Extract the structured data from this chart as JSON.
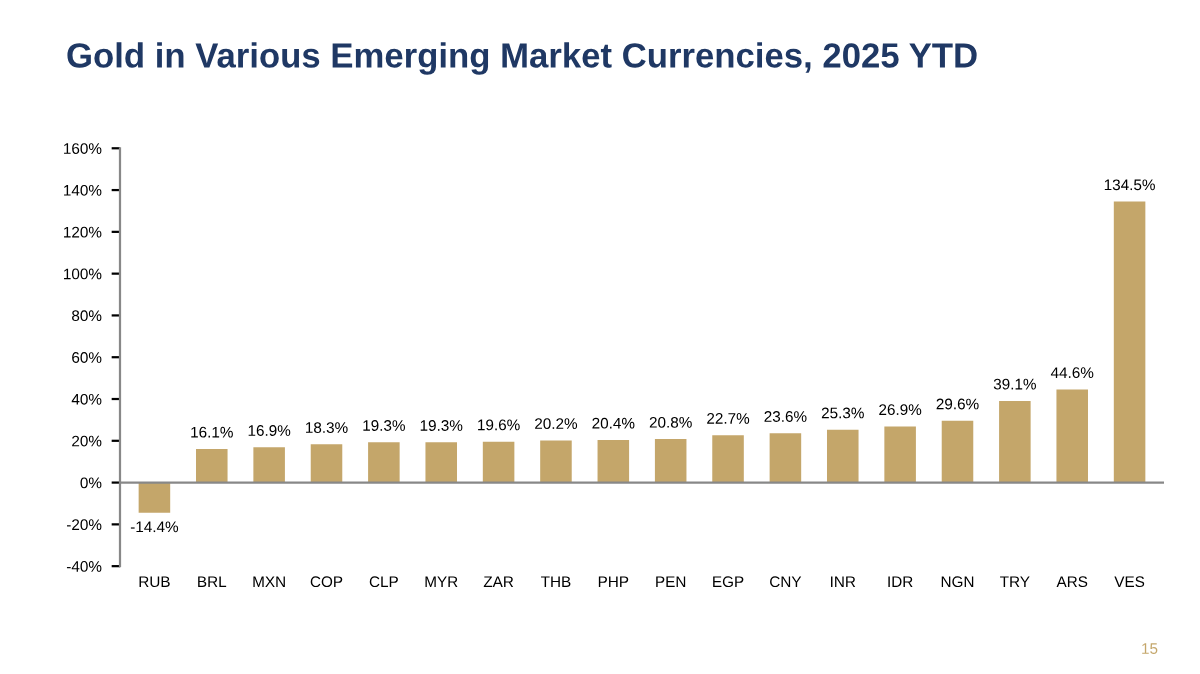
{
  "chart_data": {
    "type": "bar",
    "title": "Gold in Various Emerging Market Currencies, 2025 YTD",
    "categories": [
      "RUB",
      "BRL",
      "MXN",
      "COP",
      "CLP",
      "MYR",
      "ZAR",
      "THB",
      "PHP",
      "PEN",
      "EGP",
      "CNY",
      "INR",
      "IDR",
      "NGN",
      "TRY",
      "ARS",
      "VES"
    ],
    "values": [
      -14.4,
      16.1,
      16.9,
      18.3,
      19.3,
      19.3,
      19.6,
      20.2,
      20.4,
      20.8,
      22.7,
      23.6,
      25.3,
      26.9,
      29.6,
      39.1,
      44.6,
      134.5
    ],
    "value_labels": [
      "-14.4%",
      "16.1%",
      "16.9%",
      "18.3%",
      "19.3%",
      "19.3%",
      "19.6%",
      "20.2%",
      "20.4%",
      "20.8%",
      "22.7%",
      "23.6%",
      "25.3%",
      "26.9%",
      "29.6%",
      "39.1%",
      "44.6%",
      "134.5%"
    ],
    "color": "#c4a66a",
    "ylim": [
      -40,
      160
    ],
    "yticks": [
      {
        "value": -40,
        "label": "-40%"
      },
      {
        "value": -20,
        "label": "-20%"
      },
      {
        "value": 0,
        "label": "0%"
      },
      {
        "value": 20,
        "label": "20%"
      },
      {
        "value": 40,
        "label": "40%"
      },
      {
        "value": 60,
        "label": "60%"
      },
      {
        "value": 80,
        "label": "80%"
      },
      {
        "value": 100,
        "label": "100%"
      },
      {
        "value": 120,
        "label": "120%"
      },
      {
        "value": 140,
        "label": "140%"
      },
      {
        "value": 160,
        "label": "160%"
      }
    ],
    "annotations": [
      "15"
    ]
  }
}
